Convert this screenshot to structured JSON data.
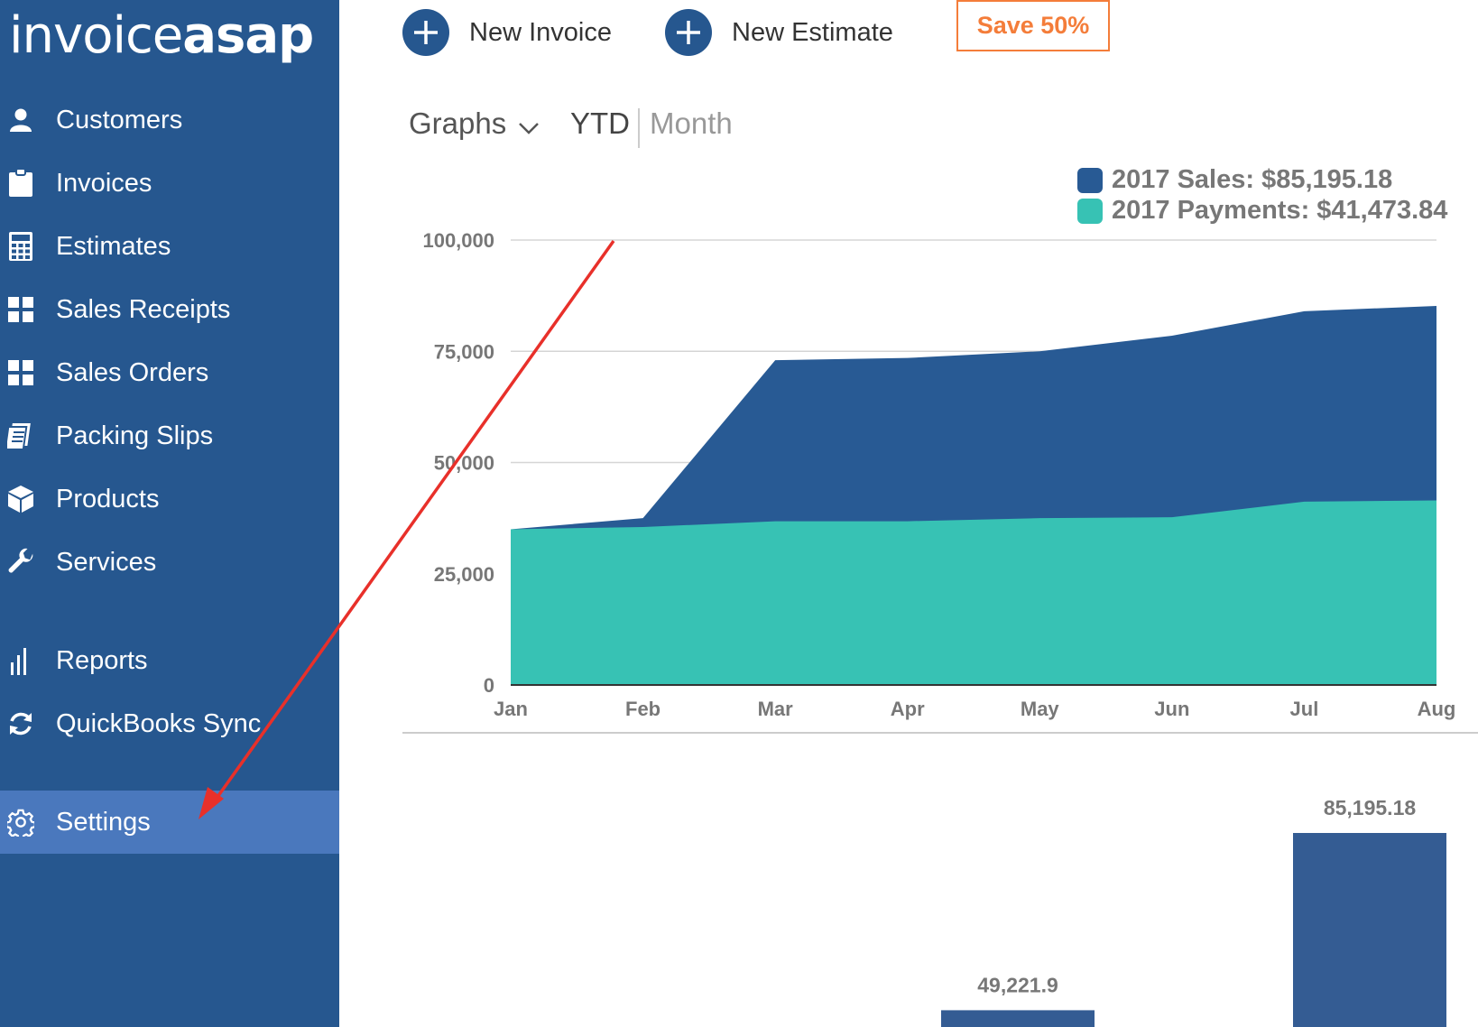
{
  "app": {
    "logo_part1": "invoice",
    "logo_part2": "asap"
  },
  "sidebar": {
    "items": [
      {
        "label": "Customers",
        "icon": "user-icon"
      },
      {
        "label": "Invoices",
        "icon": "clipboard-icon"
      },
      {
        "label": "Estimates",
        "icon": "calculator-icon"
      },
      {
        "label": "Sales Receipts",
        "icon": "grid-icon"
      },
      {
        "label": "Sales Orders",
        "icon": "grid-icon"
      },
      {
        "label": "Packing Slips",
        "icon": "packing-slip-icon"
      },
      {
        "label": "Products",
        "icon": "box-icon"
      },
      {
        "label": "Services",
        "icon": "wrench-icon"
      },
      {
        "label": "Reports",
        "icon": "bar-chart-icon"
      },
      {
        "label": "QuickBooks Sync",
        "icon": "sync-icon"
      },
      {
        "label": "Settings",
        "icon": "gear-icon"
      }
    ],
    "active": "Settings"
  },
  "toolbar": {
    "new_invoice": "New Invoice",
    "new_estimate": "New Estimate",
    "save_promo": "Save 50%"
  },
  "graph_controls": {
    "graphs_label": "Graphs",
    "ytd_label": "YTD",
    "month_label": "Month"
  },
  "colors": {
    "sidebar_bg": "#26578f",
    "active_bg": "#4a78bd",
    "sales": "#285a94",
    "payments": "#37c2b4",
    "promo": "#f47d3a",
    "annotation": "#e8302a"
  },
  "chart_data": [
    {
      "type": "area",
      "categories": [
        "Jan",
        "Feb",
        "Mar",
        "Apr",
        "May",
        "Jun",
        "Jul",
        "Aug"
      ],
      "series": [
        {
          "name": "2017 Sales",
          "legend": "2017 Sales: $85,195.18",
          "values": [
            35000,
            37500,
            73000,
            73500,
            75000,
            78500,
            84000,
            85195.18
          ]
        },
        {
          "name": "2017 Payments",
          "legend": "2017 Payments: $41,473.84",
          "values": [
            35000,
            35500,
            36800,
            36800,
            37500,
            37700,
            41200,
            41473.84
          ]
        }
      ],
      "yticks": [
        "100,000",
        "75,000",
        "50,000",
        "25,000",
        "0"
      ],
      "ylim": [
        0,
        100000
      ],
      "legend_position": "top-right"
    },
    {
      "type": "bar",
      "values": [
        49221.9,
        85195.18
      ],
      "value_labels": [
        "49,221.9",
        "85,195.18"
      ]
    }
  ]
}
